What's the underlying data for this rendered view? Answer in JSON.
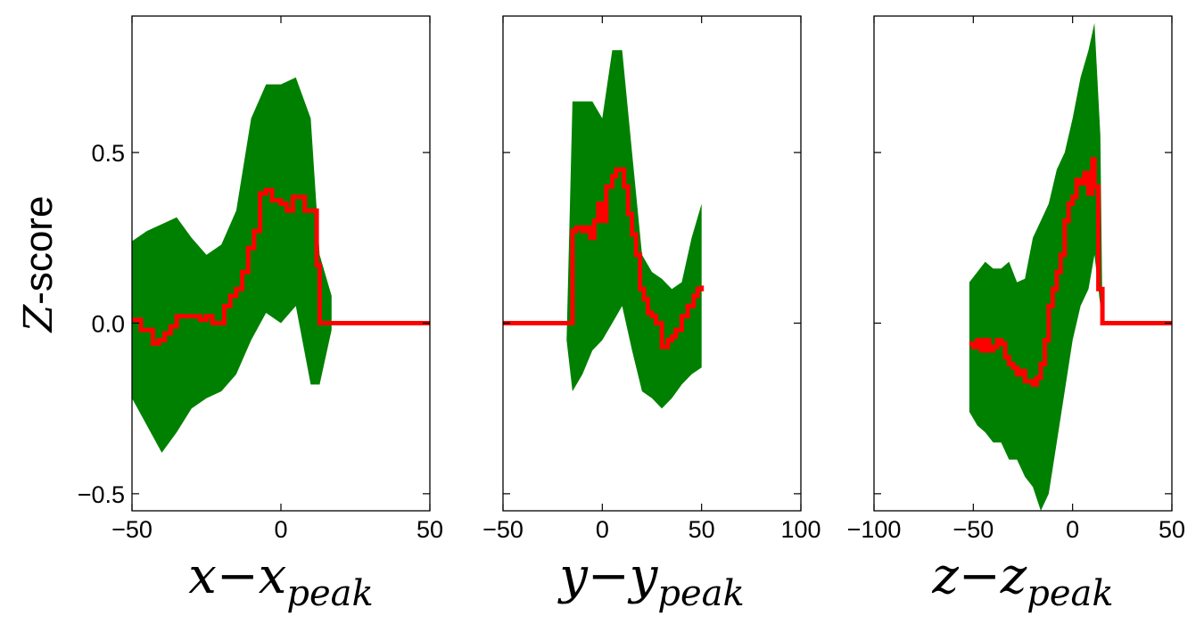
{
  "chart_data": [
    {
      "type": "line",
      "xlabel": "x−x_peak",
      "xlabel_parts": {
        "main": "x−x",
        "sub": "peak"
      },
      "ylabel": "Z-score",
      "ylabel_parts": {
        "italic": "Z",
        "rest": "-score"
      },
      "xlim": [
        -50,
        50
      ],
      "ylim": [
        -0.55,
        0.9
      ],
      "xticks": [
        -50,
        0,
        50
      ],
      "xtick_labels": [
        "−50",
        "0",
        "50"
      ],
      "yticks": [
        -0.5,
        0.0,
        0.5
      ],
      "ytick_labels": [
        "−0.5",
        "0.0",
        "0.5"
      ],
      "colors": {
        "mean": "#ff0000",
        "band": "#008000"
      },
      "band": {
        "x": [
          -50,
          -45,
          -40,
          -35,
          -30,
          -25,
          -20,
          -15,
          -10,
          -5,
          0,
          5,
          10,
          13,
          17
        ],
        "upper": [
          0.24,
          0.27,
          0.29,
          0.31,
          0.25,
          0.2,
          0.23,
          0.33,
          0.6,
          0.7,
          0.7,
          0.72,
          0.6,
          0.2,
          0.08
        ],
        "lower": [
          -0.22,
          -0.3,
          -0.38,
          -0.32,
          -0.25,
          -0.22,
          -0.2,
          -0.15,
          -0.05,
          0.03,
          0.0,
          0.05,
          -0.18,
          -0.18,
          -0.02
        ]
      },
      "series": [
        {
          "x": [
            -50,
            -47,
            -45,
            -43,
            -41,
            -39,
            -37,
            -35,
            -33,
            -30,
            -27,
            -25,
            -23,
            -21,
            -19,
            -17,
            -15,
            -13,
            -11,
            -9,
            -7,
            -5,
            -3,
            0,
            2,
            4,
            6,
            8,
            10,
            12,
            13,
            15,
            50
          ],
          "y": [
            0.01,
            -0.02,
            -0.02,
            -0.06,
            -0.05,
            -0.03,
            -0.01,
            0.02,
            0.02,
            0.02,
            0.01,
            0.02,
            0.0,
            0.0,
            0.05,
            0.08,
            0.1,
            0.15,
            0.22,
            0.27,
            0.38,
            0.39,
            0.36,
            0.35,
            0.33,
            0.37,
            0.37,
            0.33,
            0.33,
            0.17,
            0.0,
            0.0,
            0.0
          ]
        }
      ]
    },
    {
      "type": "line",
      "xlabel": "y−y_peak",
      "xlabel_parts": {
        "main": "y−y",
        "sub": "peak"
      },
      "xlim": [
        -50,
        100
      ],
      "ylim": [
        -0.55,
        0.9
      ],
      "xticks": [
        -50,
        0,
        50,
        100
      ],
      "xtick_labels": [
        "−50",
        "0",
        "50",
        "100"
      ],
      "colors": {
        "mean": "#ff0000",
        "band": "#008000"
      },
      "band": {
        "x": [
          -18,
          -15,
          -10,
          -5,
          0,
          5,
          10,
          15,
          20,
          25,
          30,
          35,
          40,
          45,
          50
        ],
        "upper": [
          -0.05,
          0.65,
          0.65,
          0.65,
          0.6,
          0.8,
          0.8,
          0.5,
          0.2,
          0.15,
          0.13,
          0.1,
          0.12,
          0.25,
          0.35
        ],
        "lower": [
          -0.05,
          -0.2,
          -0.15,
          -0.08,
          -0.05,
          0.0,
          0.05,
          -0.08,
          -0.2,
          -0.22,
          -0.25,
          -0.22,
          -0.18,
          -0.15,
          -0.13
        ]
      },
      "series": [
        {
          "x": [
            -50,
            -18,
            -15,
            -13,
            -10,
            -8,
            -6,
            -4,
            -2,
            0,
            2,
            5,
            7,
            9,
            11,
            13,
            15,
            17,
            19,
            21,
            23,
            25,
            27,
            30,
            33,
            35,
            37,
            40,
            43,
            46,
            48,
            50
          ],
          "y": [
            0.0,
            0.0,
            0.27,
            0.28,
            0.27,
            0.28,
            0.25,
            0.3,
            0.35,
            0.3,
            0.4,
            0.43,
            0.45,
            0.45,
            0.4,
            0.32,
            0.26,
            0.2,
            0.1,
            0.07,
            0.03,
            0.02,
            0.0,
            -0.07,
            -0.05,
            -0.04,
            -0.02,
            0.02,
            0.05,
            0.08,
            0.1,
            0.11
          ]
        }
      ]
    },
    {
      "type": "line",
      "xlabel": "z−z_peak",
      "xlabel_parts": {
        "main": "z−z",
        "sub": "peak"
      },
      "xlim": [
        -100,
        50
      ],
      "ylim": [
        -0.55,
        0.9
      ],
      "xticks": [
        -100,
        -50,
        0,
        50
      ],
      "xtick_labels": [
        "−100",
        "−50",
        "0",
        "50"
      ],
      "colors": {
        "mean": "#ff0000",
        "band": "#008000"
      },
      "band": {
        "x": [
          -52,
          -48,
          -44,
          -40,
          -36,
          -32,
          -28,
          -24,
          -20,
          -16,
          -12,
          -8,
          -4,
          0,
          4,
          8,
          11,
          14,
          15
        ],
        "upper": [
          0.12,
          0.15,
          0.18,
          0.16,
          0.16,
          0.18,
          0.12,
          0.13,
          0.25,
          0.3,
          0.35,
          0.45,
          0.5,
          0.6,
          0.72,
          0.8,
          0.88,
          0.55,
          0.03
        ],
        "lower": [
          -0.26,
          -0.3,
          -0.32,
          -0.35,
          -0.35,
          -0.4,
          -0.4,
          -0.45,
          -0.48,
          -0.55,
          -0.5,
          -0.35,
          -0.2,
          -0.05,
          0.05,
          0.1,
          0.2,
          0.05,
          0.0
        ]
      },
      "series": [
        {
          "x": [
            -52,
            -50,
            -48,
            -46,
            -44,
            -42,
            -40,
            -38,
            -36,
            -34,
            -32,
            -30,
            -28,
            -26,
            -24,
            -22,
            -20,
            -18,
            -16,
            -14,
            -12,
            -10,
            -8,
            -6,
            -4,
            -2,
            0,
            2,
            4,
            6,
            8,
            10,
            11,
            13,
            15,
            50
          ],
          "y": [
            -0.06,
            -0.07,
            -0.05,
            -0.08,
            -0.05,
            -0.08,
            -0.07,
            -0.05,
            -0.06,
            -0.1,
            -0.12,
            -0.13,
            -0.15,
            -0.14,
            -0.17,
            -0.17,
            -0.18,
            -0.16,
            -0.12,
            -0.05,
            0.05,
            0.1,
            0.15,
            0.2,
            0.3,
            0.35,
            0.37,
            0.42,
            0.41,
            0.44,
            0.38,
            0.48,
            0.4,
            0.1,
            0.0,
            0.0
          ]
        }
      ]
    }
  ]
}
